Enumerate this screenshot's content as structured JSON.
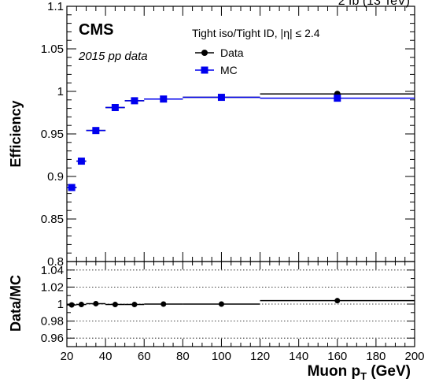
{
  "header": {
    "top_right_partial": "2 fb  (13 TeV)",
    "experiment": "CMS",
    "dataset": "2015 pp data",
    "selection": "Tight iso/Tight ID, |η| ≤ 2.4"
  },
  "colors": {
    "data": "#000000",
    "mc": "#0000ee",
    "frame": "#000000",
    "grid": "#000000"
  },
  "chart_data": [
    {
      "type": "scatter",
      "panel": "main",
      "ylabel": "Efficiency",
      "xlim": [
        20,
        200
      ],
      "ylim": [
        0.8,
        1.1
      ],
      "yticks": [
        "0.8",
        "0.85",
        "0.9",
        "0.95",
        "1",
        "1.05",
        "1.1"
      ],
      "legend": {
        "placement": "top-right",
        "entries": [
          "Data",
          "MC"
        ]
      },
      "x_bins": [
        [
          20,
          25
        ],
        [
          25,
          30
        ],
        [
          30,
          40
        ],
        [
          40,
          50
        ],
        [
          50,
          60
        ],
        [
          60,
          80
        ],
        [
          80,
          120
        ],
        [
          120,
          200
        ]
      ],
      "series": [
        {
          "name": "Data",
          "marker": "circle",
          "x": [
            22.5,
            27.5,
            35,
            45,
            55,
            70,
            100,
            160
          ],
          "y": [
            0.887,
            0.918,
            0.954,
            0.981,
            0.989,
            0.991,
            0.993,
            0.997
          ]
        },
        {
          "name": "MC",
          "marker": "square",
          "x": [
            22.5,
            27.5,
            35,
            45,
            55,
            70,
            100,
            160
          ],
          "y": [
            0.887,
            0.918,
            0.954,
            0.981,
            0.989,
            0.991,
            0.993,
            0.992
          ]
        }
      ]
    },
    {
      "type": "scatter",
      "panel": "ratio",
      "ylabel": "Data/MC",
      "xlabel": "Muon p_T (GeV)",
      "xlim": [
        20,
        200
      ],
      "ylim": [
        0.95,
        1.05
      ],
      "xticks": [
        "20",
        "40",
        "60",
        "80",
        "100",
        "120",
        "140",
        "160",
        "180",
        "200"
      ],
      "yticks": [
        "0.96",
        "0.98",
        "1",
        "1.02",
        "1.04"
      ],
      "grid": true,
      "x_bins": [
        [
          20,
          25
        ],
        [
          25,
          30
        ],
        [
          30,
          40
        ],
        [
          40,
          50
        ],
        [
          50,
          60
        ],
        [
          60,
          80
        ],
        [
          80,
          120
        ],
        [
          120,
          200
        ]
      ],
      "x": [
        22.5,
        27.5,
        35,
        45,
        55,
        70,
        100,
        160
      ],
      "values": [
        0.999,
        0.9995,
        1.0005,
        0.9995,
        0.9995,
        1.0,
        1.0,
        1.004
      ]
    }
  ]
}
